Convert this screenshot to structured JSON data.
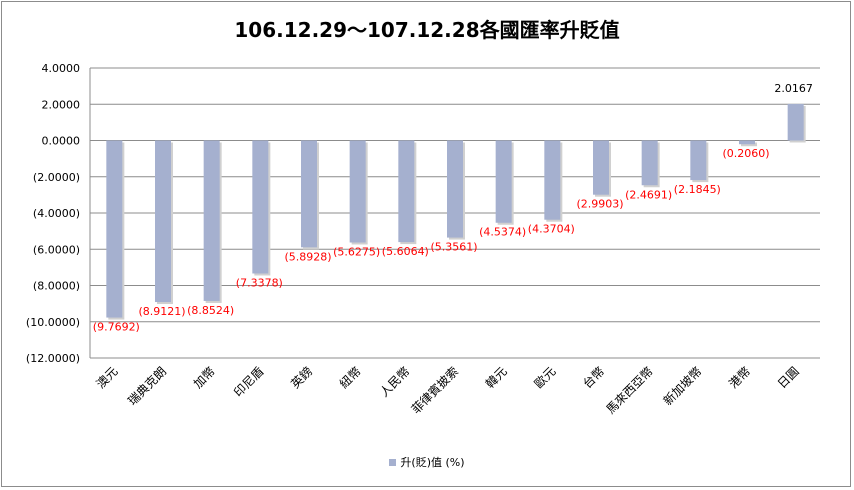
{
  "chart_data": {
    "type": "bar",
    "title": "106.12.29～107.12.28各國匯率升貶值",
    "categories": [
      "澳元",
      "瑞典克朗",
      "加幣",
      "印尼盾",
      "英鎊",
      "紐幣",
      "人民幣",
      "菲律賓披索",
      "韓元",
      "歐元",
      "台幣",
      "馬來西亞幣",
      "新加坡幣",
      "港幣",
      "日圓"
    ],
    "series": [
      {
        "name": "升(貶)值 (%)",
        "values": [
          -9.7692,
          -8.9121,
          -8.8524,
          -7.3378,
          -5.8928,
          -5.6275,
          -5.6064,
          -5.3561,
          -4.5374,
          -4.3704,
          -2.9903,
          -2.4691,
          -2.1845,
          -0.206,
          2.0167
        ]
      }
    ],
    "data_labels": [
      "(9.7692)",
      "(8.9121)",
      "(8.8524)",
      "(7.3378)",
      "(5.8928)",
      "(5.6275)",
      "(5.6064)",
      "(5.3561)",
      "(4.5374)",
      "(4.3704)",
      "(2.9903)",
      "(2.4691)",
      "(2.1845)",
      "(0.2060)",
      "2.0167"
    ],
    "y_tick_labels": [
      "4.0000",
      "2.0000",
      "0.0000",
      "(2.0000)",
      "(4.0000)",
      "(6.0000)",
      "(8.0000)",
      "(10.0000)",
      "(12.0000)"
    ],
    "y_ticks": [
      4,
      2,
      0,
      -2,
      -4,
      -6,
      -8,
      -10,
      -12
    ],
    "ylim": [
      -12,
      4
    ],
    "xlabel": "",
    "ylabel": "",
    "grid": true,
    "legend_position": "bottom",
    "colors": {
      "bar": "#a5b0cf",
      "negative_label": "#ff0000",
      "positive_label": "#000000",
      "grid": "#8c8c8c"
    }
  }
}
